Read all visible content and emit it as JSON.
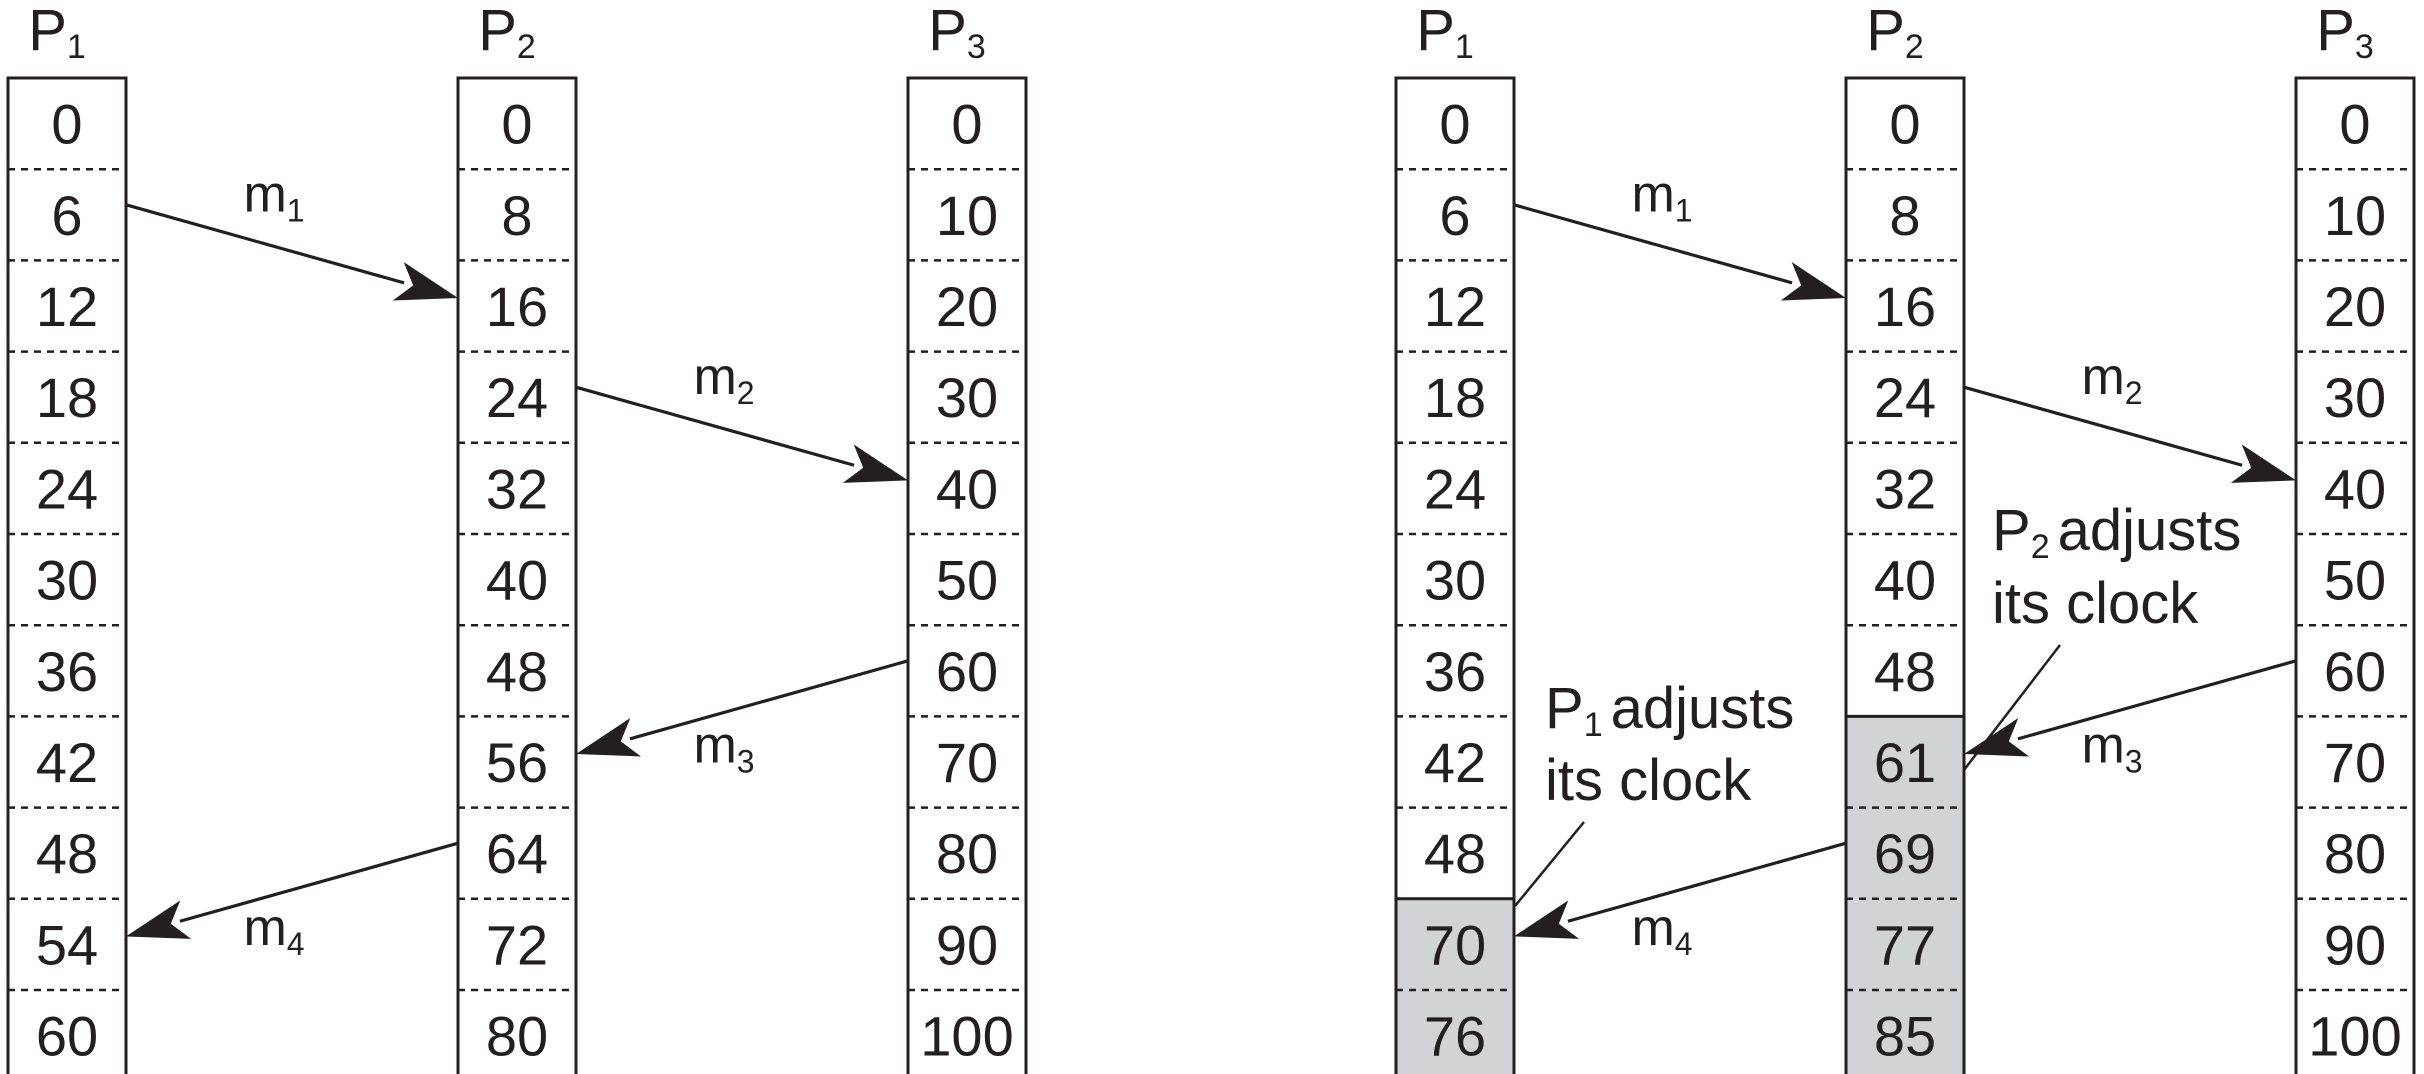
{
  "left": {
    "processes": [
      {
        "name": "P",
        "sub": "1",
        "ticks": [
          "0",
          "6",
          "12",
          "18",
          "24",
          "30",
          "36",
          "42",
          "48",
          "54",
          "60"
        ],
        "adjusted_from": null
      },
      {
        "name": "P",
        "sub": "2",
        "ticks": [
          "0",
          "8",
          "16",
          "24",
          "32",
          "40",
          "48",
          "56",
          "64",
          "72",
          "80"
        ],
        "adjusted_from": null
      },
      {
        "name": "P",
        "sub": "3",
        "ticks": [
          "0",
          "10",
          "20",
          "30",
          "40",
          "50",
          "60",
          "70",
          "80",
          "90",
          "100"
        ],
        "adjusted_from": null
      }
    ],
    "messages": [
      {
        "label": "m",
        "sub": "1",
        "from": 0,
        "to": 1,
        "send_tick": 1,
        "recv_tick": 2
      },
      {
        "label": "m",
        "sub": "2",
        "from": 1,
        "to": 2,
        "send_tick": 3,
        "recv_tick": 4
      },
      {
        "label": "m",
        "sub": "3",
        "from": 2,
        "to": 1,
        "send_tick": 6,
        "recv_tick": 7
      },
      {
        "label": "m",
        "sub": "4",
        "from": 1,
        "to": 0,
        "send_tick": 8,
        "recv_tick": 9
      }
    ],
    "notes": []
  },
  "right": {
    "processes": [
      {
        "name": "P",
        "sub": "1",
        "ticks": [
          "0",
          "6",
          "12",
          "18",
          "24",
          "30",
          "36",
          "42",
          "48",
          "70",
          "76"
        ],
        "adjusted_from": 9
      },
      {
        "name": "P",
        "sub": "2",
        "ticks": [
          "0",
          "8",
          "16",
          "24",
          "32",
          "40",
          "48",
          "61",
          "69",
          "77",
          "85"
        ],
        "adjusted_from": 7
      },
      {
        "name": "P",
        "sub": "3",
        "ticks": [
          "0",
          "10",
          "20",
          "30",
          "40",
          "50",
          "60",
          "70",
          "80",
          "90",
          "100"
        ],
        "adjusted_from": null
      }
    ],
    "messages": [
      {
        "label": "m",
        "sub": "1",
        "from": 0,
        "to": 1,
        "send_tick": 1,
        "recv_tick": 2
      },
      {
        "label": "m",
        "sub": "2",
        "from": 1,
        "to": 2,
        "send_tick": 3,
        "recv_tick": 4
      },
      {
        "label": "m",
        "sub": "3",
        "from": 2,
        "to": 1,
        "send_tick": 6,
        "recv_tick": 7
      },
      {
        "label": "m",
        "sub": "4",
        "from": 1,
        "to": 0,
        "send_tick": 8,
        "recv_tick": 9
      }
    ],
    "notes": [
      {
        "proc_name": "P",
        "proc_sub": "2",
        "line1_rest": "adjusts",
        "line2": "its clock",
        "target": 1
      },
      {
        "proc_name": "P",
        "proc_sub": "1",
        "line1_rest": "adjusts",
        "line2": "its clock",
        "target": 0
      }
    ]
  },
  "colors": {
    "ink": "#231f20",
    "adjusted_fill": "#d1d3d4",
    "background": "#ffffff"
  }
}
